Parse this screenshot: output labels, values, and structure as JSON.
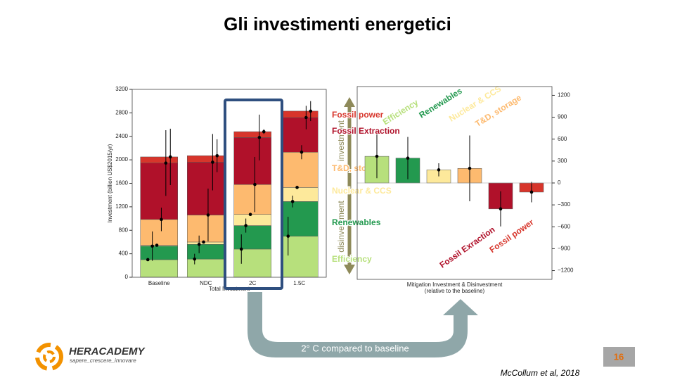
{
  "header": {
    "title": "Gli investimenti energetici"
  },
  "chart_data": [
    {
      "type": "bar",
      "stacked": true,
      "categories": [
        "Baseline",
        "NDC",
        "2C",
        "1.5C"
      ],
      "series": [
        {
          "name": "Efficiency",
          "color": "#b7e07c",
          "values": [
            300,
            310,
            480,
            700
          ],
          "errors": [
            0,
            90,
            250,
            330
          ]
        },
        {
          "name": "Renewables",
          "color": "#23994f",
          "values": [
            230,
            250,
            400,
            590
          ],
          "errors": [
            250,
            150,
            120,
            100
          ]
        },
        {
          "name": "Nuclear & CCS",
          "color": "#fde99b",
          "values": [
            15,
            40,
            190,
            240
          ],
          "errors": [
            0,
            0,
            0,
            0
          ]
        },
        {
          "name": "T&D, storage",
          "color": "#fdba6f",
          "values": [
            440,
            460,
            510,
            600
          ],
          "errors": [
            200,
            450,
            470,
            120
          ]
        },
        {
          "name": "Fossil Extraction",
          "color": "#b0112a",
          "values": [
            960,
            900,
            800,
            590
          ],
          "errors": [
            560,
            480,
            390,
            200
          ]
        },
        {
          "name": "Fossil power",
          "color": "#d7352b",
          "values": [
            105,
            110,
            100,
            110
          ],
          "errors": [
            480,
            280,
            40,
            170
          ]
        }
      ],
      "ylim": [
        0,
        3200
      ],
      "yticks": [
        0,
        400,
        800,
        1200,
        1600,
        2000,
        2400,
        2800,
        3200
      ],
      "ylabel": "Investment (billion US$2015/yr)",
      "xlabel": [
        "Total Investment"
      ]
    },
    {
      "type": "bar",
      "stacked": false,
      "yaxis_side": "right",
      "categories": [
        "Efficiency",
        "Renewables",
        "Nuclear & CCS",
        "T&D, storage",
        "Fossil Exraction",
        "Fossil power"
      ],
      "colors": [
        "#b7e07c",
        "#23994f",
        "#fde99b",
        "#fdba6f",
        "#b0112a",
        "#d7352b"
      ],
      "values": [
        365,
        340,
        180,
        200,
        -355,
        -125
      ],
      "errors": [
        300,
        290,
        90,
        450,
        240,
        140
      ],
      "ylim": [
        -1320,
        1320
      ],
      "yticks": [
        {
          "value": -1200,
          "label": "−1200"
        },
        {
          "value": -900,
          "label": "−900"
        },
        {
          "value": -600,
          "label": "−600"
        },
        {
          "value": -300,
          "label": "−300"
        },
        0,
        300,
        600,
        900,
        1200
      ],
      "xlabel": [
        "Mitigation Investment & Disinvestment",
        "(relative to the baseline)"
      ]
    }
  ],
  "overlay": {
    "up": "investment",
    "down": "disinvestment",
    "arrow_text": "2° C compared to baseline"
  },
  "footer": {
    "brand": "HERACADEMY",
    "tagline": "sapere_crescere_innovare",
    "page": "16",
    "citation": "McCollum et al, 2018"
  }
}
